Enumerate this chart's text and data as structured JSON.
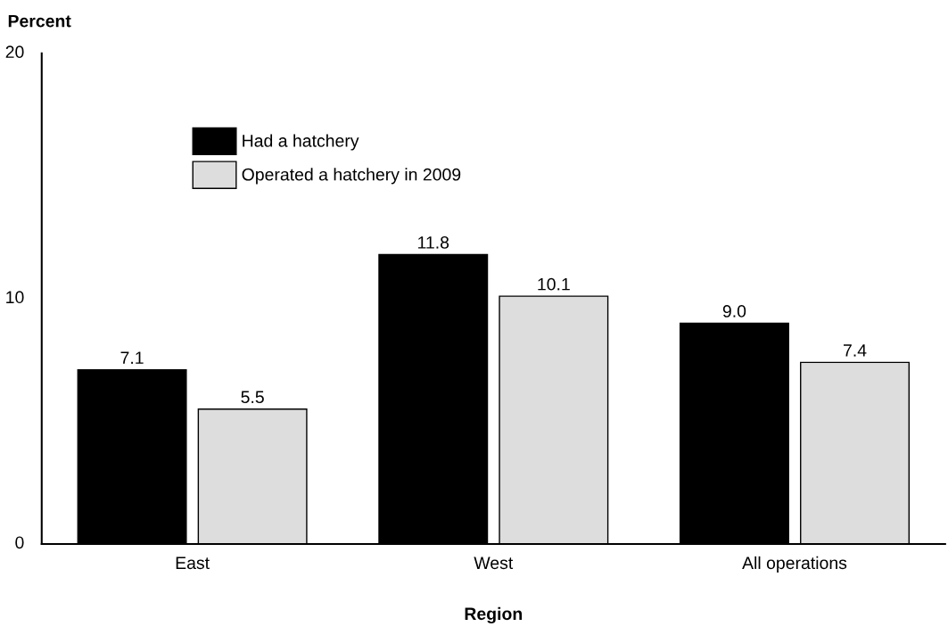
{
  "chart_data": {
    "type": "bar",
    "ylabel": "Percent",
    "xlabel": "Region",
    "categories": [
      "East",
      "West",
      "All operations"
    ],
    "series": [
      {
        "name": "Had a hatchery",
        "color": "#000000",
        "values": [
          7.1,
          11.8,
          9.0
        ],
        "value_labels": [
          "7.1",
          "11.8",
          "9.0"
        ]
      },
      {
        "name": "Operated a hatchery in 2009",
        "color": "#dddddd",
        "values": [
          5.5,
          10.1,
          7.4
        ],
        "value_labels": [
          "5.5",
          "10.1",
          "7.4"
        ]
      }
    ],
    "ylim": [
      0,
      20
    ],
    "yticks": [
      0,
      10,
      20
    ],
    "grid": false,
    "legend": "top left"
  }
}
